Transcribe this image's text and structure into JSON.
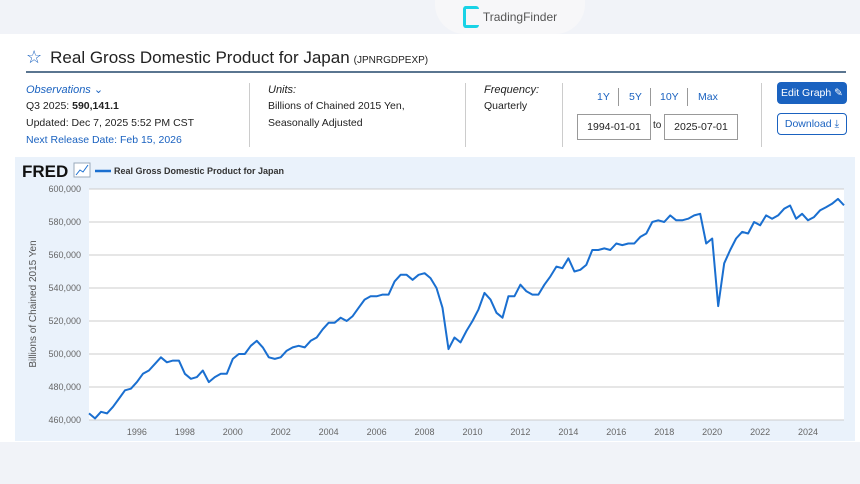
{
  "watermark": {
    "brand": "TradingFinder"
  },
  "header": {
    "title": "Real Gross Domestic Product for Japan",
    "series_id": "(JPNRGDPEXP)"
  },
  "observations": {
    "label": "Observations",
    "period": "Q3 2025:",
    "value": "590,141.1",
    "updated": "Updated: Dec 7, 2025 5:52 PM CST",
    "next_release": "Next Release Date: Feb 15, 2026"
  },
  "units": {
    "label": "Units:",
    "line1": "Billions of Chained 2015 Yen,",
    "line2": "Seasonally Adjusted"
  },
  "frequency": {
    "label": "Frequency:",
    "value": "Quarterly"
  },
  "range": {
    "buttons": [
      "1Y",
      "5Y",
      "10Y",
      "Max"
    ],
    "start": "1994-01-01",
    "to": "to",
    "end": "2025-07-01"
  },
  "actions": {
    "edit": "Edit Graph",
    "download": "Download"
  },
  "colors": {
    "accent": "#1a62c0",
    "line": "#1a6fd0",
    "chart_bg": "#eaf2fb"
  },
  "chart_data": {
    "type": "line",
    "brand": "FRED",
    "legend": "Real Gross Domestic Product for Japan",
    "legend_placement": "top-left",
    "ylabel": "Billions of Chained 2015 Yen",
    "ylim": [
      460000,
      600000
    ],
    "yticks": [
      "460,000",
      "480,000",
      "500,000",
      "520,000",
      "540,000",
      "560,000",
      "580,000",
      "600,000"
    ],
    "ytick_values": [
      460000,
      480000,
      500000,
      520000,
      540000,
      560000,
      580000,
      600000
    ],
    "xticks": [
      "1996",
      "1998",
      "2000",
      "2002",
      "2004",
      "2006",
      "2008",
      "2010",
      "2012",
      "2014",
      "2016",
      "2018",
      "2020",
      "2022",
      "2024"
    ],
    "xlim": [
      "1994-01-01",
      "2025-07-01"
    ],
    "grid": true,
    "start_quarter": "1994-Q1",
    "values_thousands": [
      464,
      461,
      465,
      464,
      468,
      473,
      478,
      479,
      483,
      488,
      490,
      494,
      498,
      495,
      496,
      496,
      488,
      485,
      486,
      490,
      483,
      486,
      488,
      488,
      497,
      500,
      500,
      505,
      508,
      504,
      498,
      497,
      498,
      502,
      504,
      505,
      504,
      508,
      510,
      515,
      519,
      519,
      522,
      520,
      523,
      528,
      533,
      535,
      535,
      536,
      536,
      544,
      548,
      548,
      545,
      548,
      549,
      546,
      540,
      528,
      503,
      510,
      507,
      514,
      520,
      527,
      537,
      533,
      525,
      522,
      535,
      535,
      542,
      538,
      536,
      536,
      542,
      547,
      553,
      552,
      558,
      550,
      551,
      554,
      563,
      563,
      564,
      563,
      567,
      566,
      567,
      567,
      571,
      573,
      580,
      581,
      580,
      584,
      581,
      581,
      582,
      584,
      585,
      567,
      570,
      529,
      555,
      563,
      570,
      574,
      573,
      580,
      578,
      584,
      582,
      584,
      588,
      590,
      582,
      585,
      581,
      583,
      587,
      589,
      591,
      594,
      590.141
    ]
  }
}
